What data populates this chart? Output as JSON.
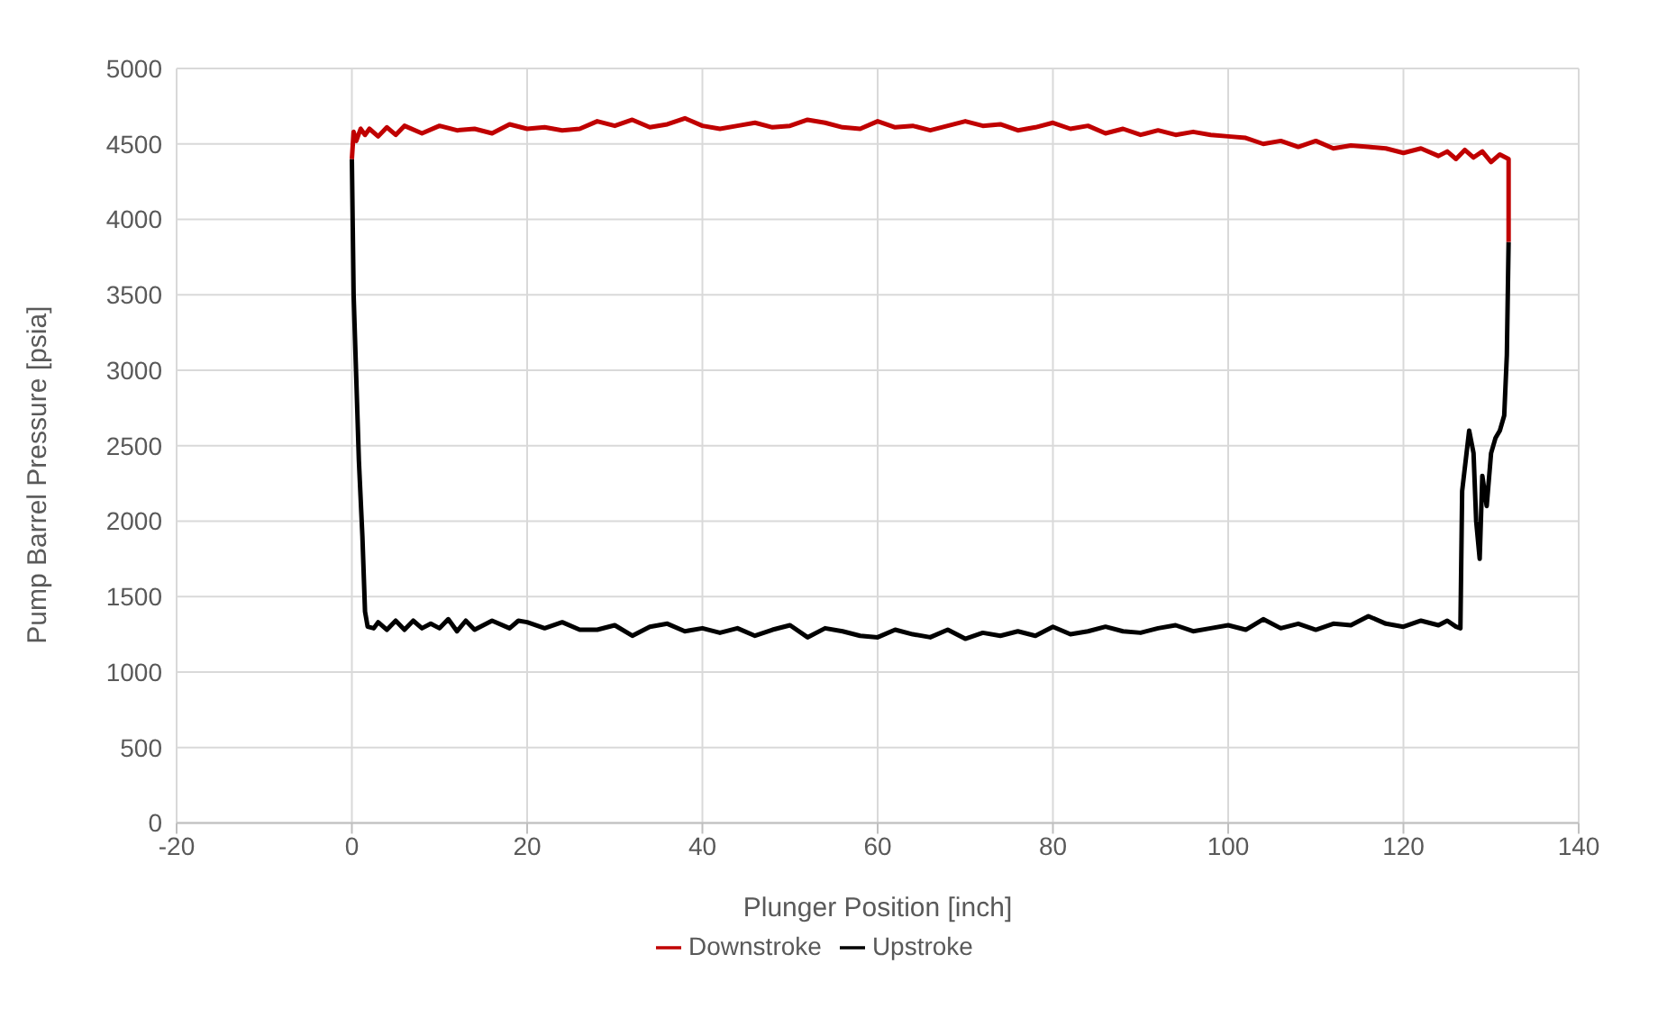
{
  "chart_data": {
    "type": "line",
    "xlabel": "Plunger Position [inch]",
    "ylabel": "Pump Barrel Pressure [psia]",
    "xlim": [
      -20,
      140
    ],
    "xticks": [
      -20,
      0,
      20,
      40,
      60,
      80,
      100,
      120,
      140
    ],
    "ylim": [
      0,
      5000
    ],
    "yticks": [
      0,
      500,
      1000,
      1500,
      2000,
      2500,
      3000,
      3500,
      4000,
      4500,
      5000
    ],
    "grid": true,
    "legend": "bottom",
    "marker": "none",
    "line_style": "solid",
    "series": [
      {
        "name": "Upstroke",
        "color": "#000000",
        "x": [
          0,
          0.2,
          0.5,
          0.8,
          1.2,
          1.5,
          1.8,
          2.5,
          3,
          4,
          5,
          6,
          7,
          8,
          9,
          10,
          11,
          12,
          13,
          14,
          16,
          18,
          19,
          20,
          22,
          24,
          26,
          28,
          30,
          32,
          34,
          36,
          38,
          40,
          42,
          44,
          46,
          48,
          50,
          52,
          54,
          56,
          58,
          60,
          62,
          64,
          66,
          68,
          70,
          72,
          74,
          76,
          78,
          80,
          82,
          84,
          86,
          88,
          90,
          92,
          94,
          96,
          98,
          100,
          102,
          104,
          106,
          108,
          110,
          112,
          114,
          116,
          118,
          120,
          122,
          124,
          125,
          126,
          126.5,
          126.7,
          127,
          127.5,
          128,
          128.3,
          128.7,
          129,
          129.5,
          130,
          130.5,
          131,
          131.5,
          131.8,
          132
        ],
        "values": [
          4400,
          3500,
          2950,
          2400,
          1900,
          1400,
          1300,
          1290,
          1330,
          1280,
          1340,
          1280,
          1340,
          1290,
          1320,
          1290,
          1350,
          1270,
          1340,
          1280,
          1340,
          1290,
          1340,
          1330,
          1290,
          1330,
          1280,
          1280,
          1310,
          1240,
          1300,
          1320,
          1270,
          1290,
          1260,
          1290,
          1240,
          1280,
          1310,
          1230,
          1290,
          1270,
          1240,
          1230,
          1280,
          1250,
          1230,
          1280,
          1220,
          1260,
          1240,
          1270,
          1240,
          1300,
          1250,
          1270,
          1300,
          1270,
          1260,
          1290,
          1310,
          1270,
          1290,
          1310,
          1280,
          1350,
          1290,
          1320,
          1280,
          1320,
          1310,
          1370,
          1320,
          1300,
          1340,
          1310,
          1340,
          1300,
          1290,
          2200,
          2350,
          2600,
          2450,
          2000,
          1750,
          2300,
          2100,
          2450,
          2550,
          2600,
          2700,
          3100,
          3850
        ]
      },
      {
        "name": "Downstroke",
        "color": "#c00000",
        "x": [
          132,
          132,
          131,
          130,
          129,
          128,
          127,
          126,
          125,
          124,
          122,
          120,
          118,
          116,
          114,
          112,
          110,
          108,
          106,
          104,
          102,
          100,
          98,
          96,
          94,
          92,
          90,
          88,
          86,
          84,
          82,
          80,
          78,
          76,
          74,
          72,
          70,
          68,
          66,
          64,
          62,
          60,
          58,
          56,
          54,
          52,
          50,
          48,
          46,
          44,
          42,
          40,
          38,
          36,
          34,
          32,
          30,
          28,
          26,
          24,
          22,
          20,
          18,
          16,
          14,
          12,
          10,
          8,
          6,
          5,
          4,
          3,
          2,
          1.5,
          1,
          0.5,
          0.2,
          0
        ],
        "values": [
          3850,
          4400,
          4430,
          4380,
          4450,
          4410,
          4460,
          4400,
          4450,
          4420,
          4470,
          4440,
          4470,
          4480,
          4490,
          4470,
          4520,
          4480,
          4520,
          4500,
          4540,
          4550,
          4560,
          4580,
          4560,
          4590,
          4560,
          4600,
          4570,
          4620,
          4600,
          4640,
          4610,
          4590,
          4630,
          4620,
          4650,
          4620,
          4590,
          4620,
          4610,
          4650,
          4600,
          4610,
          4640,
          4660,
          4620,
          4610,
          4640,
          4620,
          4600,
          4620,
          4670,
          4630,
          4610,
          4660,
          4620,
          4650,
          4600,
          4590,
          4610,
          4600,
          4630,
          4570,
          4600,
          4590,
          4620,
          4570,
          4620,
          4560,
          4610,
          4550,
          4600,
          4560,
          4600,
          4520,
          4580,
          4400
        ]
      }
    ]
  }
}
